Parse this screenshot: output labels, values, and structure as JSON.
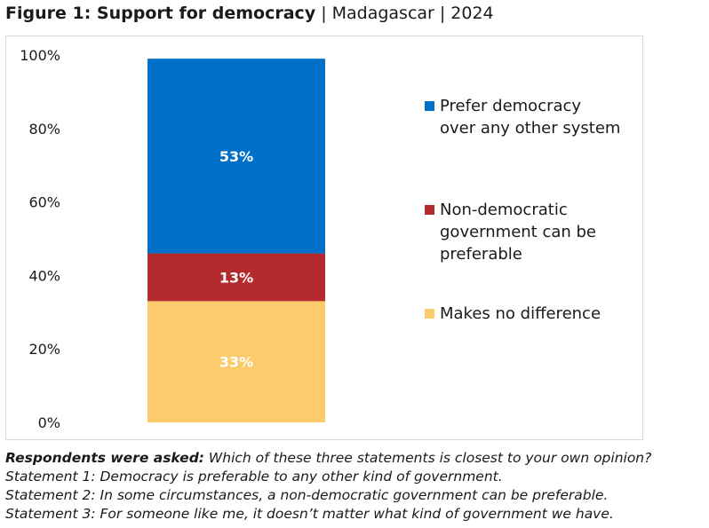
{
  "title": {
    "main": "Figure 1: Support for democracy",
    "country": "Madagascar",
    "year": "2024",
    "separator": "|"
  },
  "chart_data": {
    "type": "bar",
    "stacked": true,
    "categories": [
      ""
    ],
    "ylim": [
      0,
      100
    ],
    "yticks": [
      "0%",
      "20%",
      "40%",
      "60%",
      "80%",
      "100%"
    ],
    "series": [
      {
        "name": "Makes no difference",
        "values": [
          33
        ],
        "label": "33%",
        "color": "#FCCB6B"
      },
      {
        "name": "Non-democratic government can be preferable",
        "values": [
          13
        ],
        "label": "13%",
        "color": "#B42A2F"
      },
      {
        "name": "Prefer democracy over any other system",
        "values": [
          53
        ],
        "label": "53%",
        "color": "#0070C8"
      }
    ],
    "legend": {
      "placement": "right",
      "items": [
        {
          "lines": [
            "Prefer democracy",
            "over any other system"
          ],
          "color": "#0070C8"
        },
        {
          "lines": [
            "Non-democratic",
            "government can be",
            "preferable"
          ],
          "color": "#B42A2F"
        },
        {
          "lines": [
            "Makes no difference"
          ],
          "color": "#FCCB6B"
        }
      ]
    }
  },
  "notes": {
    "question_label": "Respondents were asked:",
    "question_text": " Which of these three statements is closest to your own opinion?",
    "statement_1": "Statement 1: Democracy is preferable to any other kind of government.",
    "statement_2": "Statement 2: In some circumstances, a non-democratic government can be preferable.",
    "statement_3": "Statement 3: For someone like me, it doesn’t matter what kind of government we have."
  }
}
